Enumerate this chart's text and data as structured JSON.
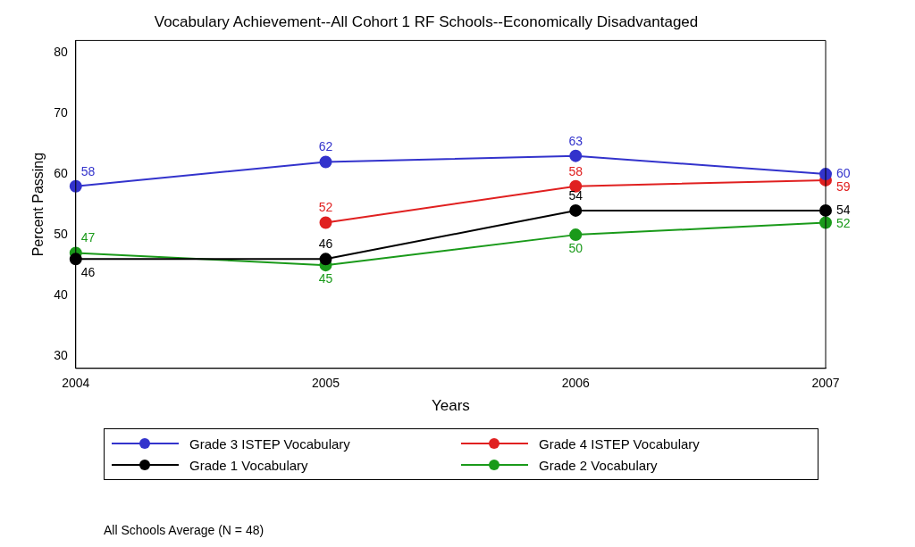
{
  "chart_data": {
    "type": "line",
    "title": "Vocabulary Achievement--All Cohort 1 RF Schools--Economically Disadvantaged",
    "xlabel": "Years",
    "ylabel": "Percent Passing",
    "categories": [
      "2004",
      "2005",
      "2006",
      "2007"
    ],
    "series": [
      {
        "name": "Grade 3 ISTEP Vocabulary",
        "color": "#3333cc",
        "values": [
          58,
          62,
          63,
          60
        ]
      },
      {
        "name": "Grade 4 ISTEP Vocabulary",
        "color": "#e02020",
        "values": [
          null,
          52,
          58,
          59
        ]
      },
      {
        "name": "Grade 1 Vocabulary",
        "color": "#000000",
        "values": [
          46,
          46,
          54,
          54
        ]
      },
      {
        "name": "Grade 2 Vocabulary",
        "color": "#1a9a1a",
        "values": [
          47,
          45,
          50,
          52
        ]
      }
    ],
    "ylim": [
      28,
      82
    ],
    "yticks": [
      30,
      40,
      50,
      60,
      70,
      80
    ],
    "grid": false,
    "legend": "bottom",
    "marker": "circle",
    "line_style": "solid",
    "data_labels": true,
    "annotations": [
      "All Schools Average (N = 48)"
    ]
  }
}
